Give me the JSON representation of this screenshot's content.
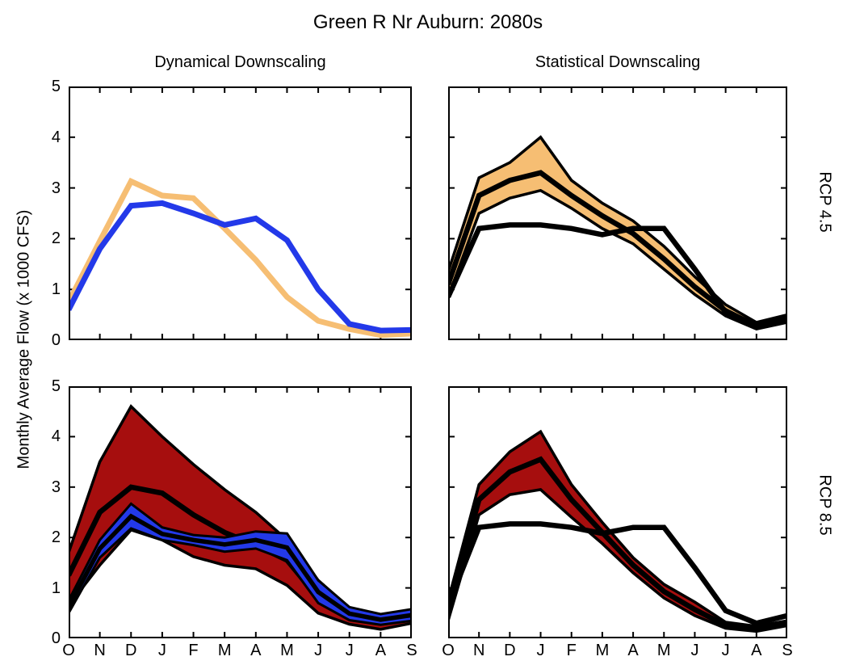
{
  "title": "Green R Nr Auburn: 2080s",
  "ylabel": "Monthly Average Flow (x 1000 CFS)",
  "col_titles": [
    "Dynamical Downscaling",
    "Statistical Downscaling"
  ],
  "row_labels": [
    "RCP 4.5",
    "RCP 8.5"
  ],
  "months": [
    "O",
    "N",
    "D",
    "J",
    "F",
    "M",
    "A",
    "M",
    "J",
    "J",
    "A",
    "S"
  ],
  "yticks": [
    "0",
    "1",
    "2",
    "3",
    "4",
    "5"
  ],
  "colors": {
    "blue": "#2339E9",
    "orange": "#F6BE73",
    "red": "#A60E0E",
    "black": "#000000",
    "background": "#FFFFFF"
  },
  "chart_data": [
    {
      "id": "dynamical-rcp45",
      "position": "top-left",
      "type": "line",
      "column": "Dynamical Downscaling",
      "row": "RCP 4.5",
      "ylim": [
        0,
        5
      ],
      "grid": false,
      "legend": "none",
      "layers": [
        {
          "kind": "line",
          "name": "rcp45-dynamical-flow",
          "color": "orange",
          "width": 7,
          "values": [
            0.75,
            1.95,
            3.13,
            2.85,
            2.8,
            2.2,
            1.58,
            0.85,
            0.38,
            0.22,
            0.1,
            0.13
          ]
        },
        {
          "kind": "line",
          "name": "historical-dynamical-flow",
          "color": "blue",
          "width": 7,
          "values": [
            0.6,
            1.8,
            2.65,
            2.7,
            2.5,
            2.27,
            2.4,
            1.97,
            1.0,
            0.32,
            0.19,
            0.2
          ]
        }
      ]
    },
    {
      "id": "statistical-rcp45",
      "position": "top-right",
      "type": "band",
      "column": "Statistical Downscaling",
      "row": "RCP 4.5",
      "ylim": [
        0,
        5
      ],
      "grid": false,
      "legend": "none",
      "layers": [
        {
          "kind": "band",
          "name": "rcp45-statistical-range",
          "fill": "orange",
          "edge_color": "black",
          "edge_width": 3.5,
          "upper": [
            1.35,
            3.2,
            3.5,
            4.0,
            3.15,
            2.7,
            2.35,
            1.85,
            1.25,
            0.7,
            0.35,
            0.5
          ],
          "lower": [
            0.85,
            2.5,
            2.8,
            2.95,
            2.6,
            2.2,
            1.9,
            1.4,
            0.9,
            0.48,
            0.22,
            0.35
          ]
        },
        {
          "kind": "line",
          "name": "rcp45-statistical-mean",
          "color": "black",
          "width": 6.5,
          "values": [
            1.1,
            2.85,
            3.15,
            3.3,
            2.85,
            2.45,
            2.1,
            1.6,
            1.05,
            0.58,
            0.28,
            0.42
          ]
        },
        {
          "kind": "line",
          "name": "historical-baseline",
          "color": "black",
          "width": 6.5,
          "values": [
            0.85,
            2.2,
            2.27,
            2.27,
            2.2,
            2.08,
            2.2,
            2.2,
            1.4,
            0.55,
            0.3,
            0.45
          ]
        }
      ]
    },
    {
      "id": "dynamical-rcp85",
      "position": "bottom-left",
      "type": "band",
      "column": "Dynamical Downscaling",
      "row": "RCP 8.5",
      "ylim": [
        0,
        5
      ],
      "grid": false,
      "legend": "none",
      "layers": [
        {
          "kind": "band",
          "name": "rcp85-dynamical-range",
          "fill": "red",
          "edge_color": "black",
          "edge_width": 3.5,
          "upper": [
            1.7,
            3.5,
            4.6,
            4.0,
            3.45,
            2.95,
            2.5,
            1.95,
            1.15,
            0.6,
            0.42,
            0.55
          ],
          "lower": [
            0.65,
            1.45,
            2.15,
            1.95,
            1.62,
            1.45,
            1.38,
            1.05,
            0.5,
            0.28,
            0.18,
            0.3
          ]
        },
        {
          "kind": "line",
          "name": "rcp85-dynamical-mean",
          "color": "black",
          "width": 6.5,
          "values": [
            1.25,
            2.5,
            3.0,
            2.88,
            2.45,
            2.1,
            1.85,
            1.55,
            0.8,
            0.4,
            0.3,
            0.4
          ]
        },
        {
          "kind": "band",
          "name": "historical-dynamical-range",
          "fill": "blue",
          "edge_color": "black",
          "edge_width": 3,
          "upper": [
            0.75,
            1.95,
            2.67,
            2.2,
            2.05,
            2.0,
            2.12,
            2.08,
            1.15,
            0.62,
            0.48,
            0.58
          ],
          "lower": [
            0.5,
            1.6,
            2.18,
            1.95,
            1.85,
            1.72,
            1.78,
            1.55,
            0.7,
            0.36,
            0.27,
            0.35
          ]
        },
        {
          "kind": "line",
          "name": "historical-dynamical-mean",
          "color": "black",
          "width": 5.5,
          "values": [
            0.62,
            1.78,
            2.42,
            2.07,
            1.95,
            1.86,
            1.95,
            1.8,
            0.92,
            0.49,
            0.37,
            0.46
          ]
        }
      ]
    },
    {
      "id": "statistical-rcp85",
      "position": "bottom-right",
      "type": "band",
      "column": "Statistical Downscaling",
      "row": "RCP 8.5",
      "ylim": [
        0,
        5
      ],
      "grid": false,
      "legend": "none",
      "layers": [
        {
          "kind": "band",
          "name": "rcp85-statistical-range",
          "fill": "red",
          "edge_color": "black",
          "edge_width": 3.5,
          "upper": [
            0.75,
            3.05,
            3.7,
            4.1,
            3.05,
            2.3,
            1.6,
            1.07,
            0.72,
            0.32,
            0.24,
            0.35
          ],
          "lower": [
            0.35,
            2.45,
            2.85,
            2.95,
            2.4,
            1.88,
            1.3,
            0.8,
            0.45,
            0.2,
            0.14,
            0.25
          ]
        },
        {
          "kind": "line",
          "name": "rcp85-statistical-mean",
          "color": "black",
          "width": 6.5,
          "values": [
            0.55,
            2.75,
            3.3,
            3.55,
            2.75,
            2.1,
            1.45,
            0.93,
            0.57,
            0.26,
            0.19,
            0.3
          ]
        },
        {
          "kind": "line",
          "name": "historical-baseline",
          "color": "black",
          "width": 6.5,
          "values": [
            0.65,
            2.2,
            2.27,
            2.27,
            2.2,
            2.08,
            2.2,
            2.2,
            1.4,
            0.55,
            0.3,
            0.45
          ]
        }
      ]
    }
  ]
}
